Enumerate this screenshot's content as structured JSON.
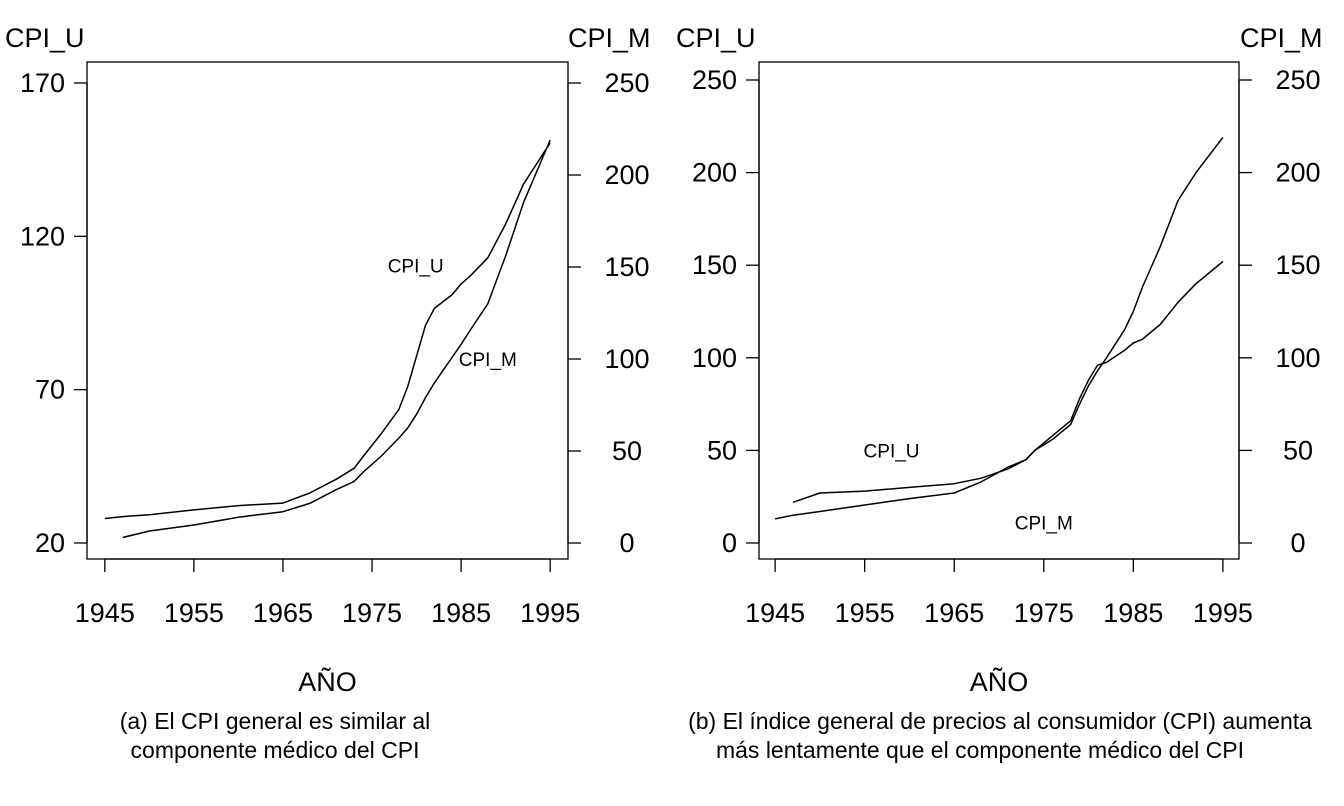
{
  "chart_data": [
    {
      "type": "line",
      "panel": "a",
      "left_axis_label": "CPI_U",
      "right_axis_label": "CPI_M",
      "xlabel": "AÑO",
      "left_ylim": [
        20,
        170
      ],
      "right_ylim": [
        0,
        250
      ],
      "left_ticks": [
        20,
        70,
        120,
        170
      ],
      "right_ticks": [
        0,
        50,
        100,
        150,
        200,
        250
      ],
      "x_ticks": [
        1945,
        1955,
        1965,
        1975,
        1985,
        1995
      ],
      "grid": false,
      "x": [
        1945,
        1947,
        1950,
        1955,
        1960,
        1965,
        1968,
        1971,
        1973,
        1974,
        1976,
        1978,
        1979,
        1980,
        1981,
        1982,
        1984,
        1985,
        1986,
        1988,
        1990,
        1992,
        1995
      ],
      "series": [
        {
          "name": "CPI_U",
          "axis": "left",
          "values": [
            28.0,
            28.6,
            29.2,
            30.8,
            32.2,
            33.0,
            36.3,
            40.8,
            44.4,
            48.2,
            55.5,
            63.5,
            71.0,
            81.0,
            91.0,
            96.5,
            101.0,
            104.5,
            107.0,
            113.0,
            124.0,
            137.0,
            150.5
          ]
        },
        {
          "name": "CPI_M",
          "axis": "right",
          "values": [
            null,
            3.0,
            6.5,
            9.8,
            14.0,
            17.0,
            21.5,
            29.0,
            33.5,
            38.5,
            47.0,
            57.0,
            62.5,
            70.0,
            79.0,
            87.0,
            101.0,
            108.0,
            115.5,
            130.0,
            156.0,
            185.0,
            219.0
          ]
        }
      ],
      "annotations": [
        {
          "text": "CPI_U",
          "x": 1979.9,
          "y": 110.5,
          "axis": "left"
        },
        {
          "text": "CPI_M",
          "x": 1988.0,
          "y": 100.0,
          "axis": "right"
        }
      ],
      "caption_line1": "(a) El CPI general es similar al",
      "caption_line2": "componente médico del CPI"
    },
    {
      "type": "line",
      "panel": "b",
      "left_axis_label": "CPI_U",
      "right_axis_label": "CPI_M",
      "xlabel": "AÑO",
      "left_ylim": [
        0,
        250
      ],
      "right_ylim": [
        0,
        250
      ],
      "left_ticks": [
        0,
        50,
        100,
        150,
        200,
        250
      ],
      "right_ticks": [
        0,
        50,
        100,
        150,
        200,
        250
      ],
      "x_ticks": [
        1945,
        1955,
        1965,
        1975,
        1985,
        1995
      ],
      "grid": false,
      "x": [
        1945,
        1947,
        1950,
        1955,
        1960,
        1965,
        1968,
        1971,
        1973,
        1974,
        1976,
        1978,
        1979,
        1980,
        1981,
        1982,
        1984,
        1985,
        1986,
        1988,
        1990,
        1992,
        1995
      ],
      "series": [
        {
          "name": "CPI_U",
          "axis": "left",
          "values": [
            13.0,
            15.0,
            17.0,
            20.5,
            24.0,
            27.0,
            33.0,
            41.0,
            45.0,
            50.0,
            58.0,
            66.0,
            78.0,
            88.0,
            96.0,
            97.5,
            104.0,
            108.0,
            110.0,
            118.0,
            130.0,
            140.0,
            152.0
          ]
        },
        {
          "name": "CPI_M",
          "axis": "right",
          "values": [
            null,
            22.0,
            27.0,
            28.0,
            30.0,
            32.0,
            35.0,
            40.0,
            45.0,
            50.0,
            56.0,
            64.0,
            75.0,
            85.0,
            93.0,
            100.0,
            115.0,
            125.0,
            138.0,
            160.0,
            185.0,
            200.0,
            219.0
          ]
        }
      ],
      "annotations": [
        {
          "text": "CPI_U",
          "x": 1958.0,
          "y": 50.0,
          "axis": "left"
        },
        {
          "text": "CPI_M",
          "x": 1975.0,
          "y": 11.0,
          "axis": "left"
        }
      ],
      "caption_line1": "(b) El índice general de precios al consumidor (CPI) aumenta",
      "caption_line2": "más lentamente que el componente médico del CPI"
    }
  ]
}
